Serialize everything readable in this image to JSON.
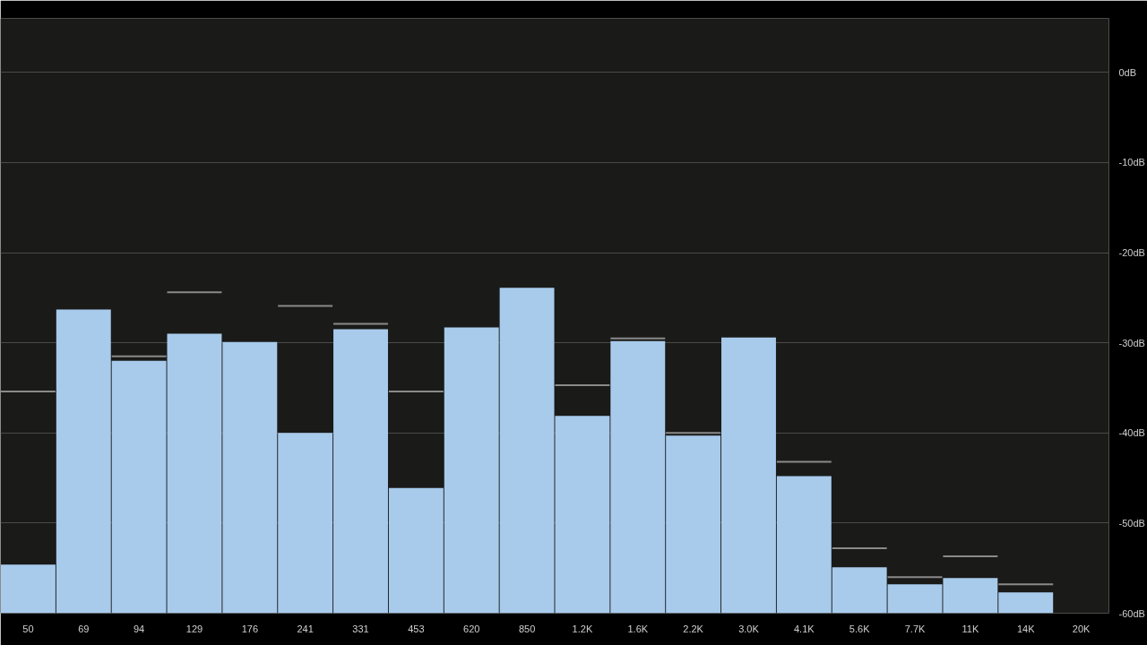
{
  "chart_data": {
    "type": "bar",
    "categories": [
      "50",
      "69",
      "94",
      "129",
      "176",
      "241",
      "331",
      "453",
      "620",
      "850",
      "1.2K",
      "1.6K",
      "2.2K",
      "3.0K",
      "4.1K",
      "5.6K",
      "7.7K",
      "11K",
      "14K",
      "20K"
    ],
    "series": [
      {
        "color": "#a8cbec",
        "base": [
          -60,
          -60,
          -60,
          -60,
          -60,
          -60,
          -60,
          -60,
          -60,
          -60,
          -60,
          -60,
          -60,
          -60,
          -60,
          -60,
          -60,
          -60,
          -60,
          null
        ],
        "values": [
          5.4,
          33.7,
          28.0,
          31.0,
          30.1,
          20.0,
          31.5,
          13.9,
          31.7,
          36.1,
          21.9,
          30.2,
          19.7,
          30.6,
          15.2,
          5.1,
          3.2,
          3.9,
          2.3,
          null
        ]
      },
      {
        "color": "#8a8a8a",
        "base": [
          -35.5,
          null,
          -31.6,
          -24.5,
          null,
          -26.0,
          -28.0,
          -35.5,
          null,
          null,
          -34.8,
          -29.6,
          -40.1,
          null,
          -43.3,
          -52.9,
          -56.1,
          -53.8,
          -56.9,
          null
        ],
        "values": [
          0.2,
          null,
          0.2,
          0.2,
          null,
          0.2,
          0.2,
          0.2,
          null,
          null,
          0.2,
          0.2,
          0.2,
          null,
          0.2,
          0.2,
          0.2,
          0.2,
          0.2,
          null
        ]
      }
    ],
    "ylim": [
      -60,
      6
    ],
    "yticks": [
      {
        "value": 0,
        "label": "0dB"
      },
      {
        "value": -10,
        "label": "-10dB"
      },
      {
        "value": -20,
        "label": "-20dB"
      },
      {
        "value": -30,
        "label": "-30dB"
      },
      {
        "value": -40,
        "label": "-40dB"
      },
      {
        "value": -50,
        "label": "-50dB"
      },
      {
        "value": -60,
        "label": "-60dB"
      }
    ],
    "grid": "y"
  }
}
